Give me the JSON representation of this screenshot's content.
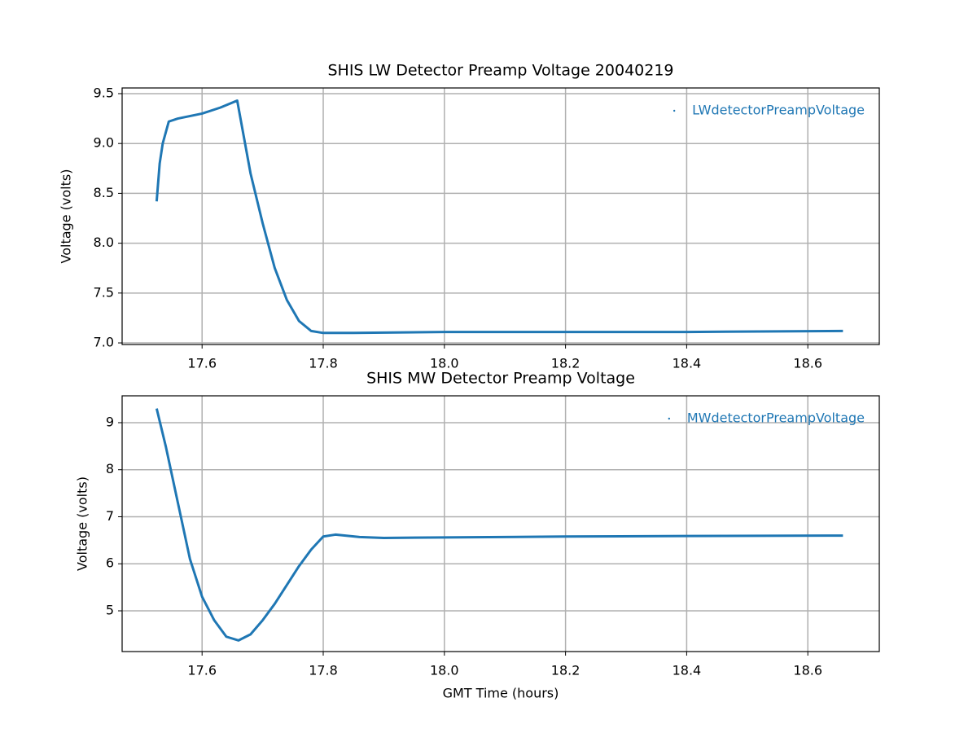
{
  "chart_data": [
    {
      "type": "line",
      "title": "SHIS LW Detector Preamp Voltage 20040219",
      "ylabel": "Voltage (volts)",
      "x": [
        17.525,
        17.53,
        17.535,
        17.545,
        17.56,
        17.6,
        17.63,
        17.658,
        17.68,
        17.7,
        17.72,
        17.74,
        17.76,
        17.78,
        17.8,
        17.85,
        18.0,
        18.2,
        18.4,
        18.658
      ],
      "series": [
        {
          "name": "LWdetectorPreampVoltage",
          "color": "#1f77b4",
          "values": [
            8.42,
            8.8,
            9.0,
            9.22,
            9.25,
            9.3,
            9.36,
            9.43,
            8.7,
            8.2,
            7.75,
            7.43,
            7.22,
            7.12,
            7.1,
            7.1,
            7.11,
            7.11,
            7.11,
            7.12
          ]
        }
      ],
      "xlim": [
        17.468,
        18.718
      ],
      "ylim": [
        6.984,
        9.557
      ],
      "xticks": [
        17.6,
        17.8,
        {
          "value": 18,
          "label": "18.0"
        },
        18.2,
        18.4,
        18.6
      ],
      "yticks": [
        {
          "value": 7,
          "label": "7.0"
        },
        7.5,
        {
          "value": 8,
          "label": "8.0"
        },
        8.5,
        {
          "value": 9,
          "label": "9.0"
        },
        9.5
      ],
      "grid": true,
      "legend": "upper right"
    },
    {
      "type": "line",
      "title": "SHIS MW Detector Preamp Voltage",
      "xlabel": "GMT Time (hours)",
      "ylabel": "Voltage (volts)",
      "x": [
        17.525,
        17.54,
        17.56,
        17.58,
        17.6,
        17.62,
        17.64,
        17.66,
        17.68,
        17.7,
        17.72,
        17.74,
        17.76,
        17.78,
        17.8,
        17.82,
        17.86,
        17.9,
        18.0,
        18.2,
        18.4,
        18.658
      ],
      "series": [
        {
          "name": "MWdetectorPreampVoltage",
          "color": "#1f77b4",
          "values": [
            9.3,
            8.5,
            7.3,
            6.1,
            5.3,
            4.8,
            4.45,
            4.37,
            4.5,
            4.8,
            5.15,
            5.55,
            5.95,
            6.3,
            6.58,
            6.62,
            6.57,
            6.55,
            6.56,
            6.58,
            6.59,
            6.6
          ]
        }
      ],
      "xlim": [
        17.468,
        18.718
      ],
      "ylim": [
        4.134,
        9.571
      ],
      "xticks": [
        17.6,
        17.8,
        {
          "value": 18,
          "label": "18.0"
        },
        18.2,
        18.4,
        18.6
      ],
      "yticks": [
        5,
        6,
        7,
        8,
        9
      ],
      "grid": true,
      "legend": "upper right"
    }
  ]
}
